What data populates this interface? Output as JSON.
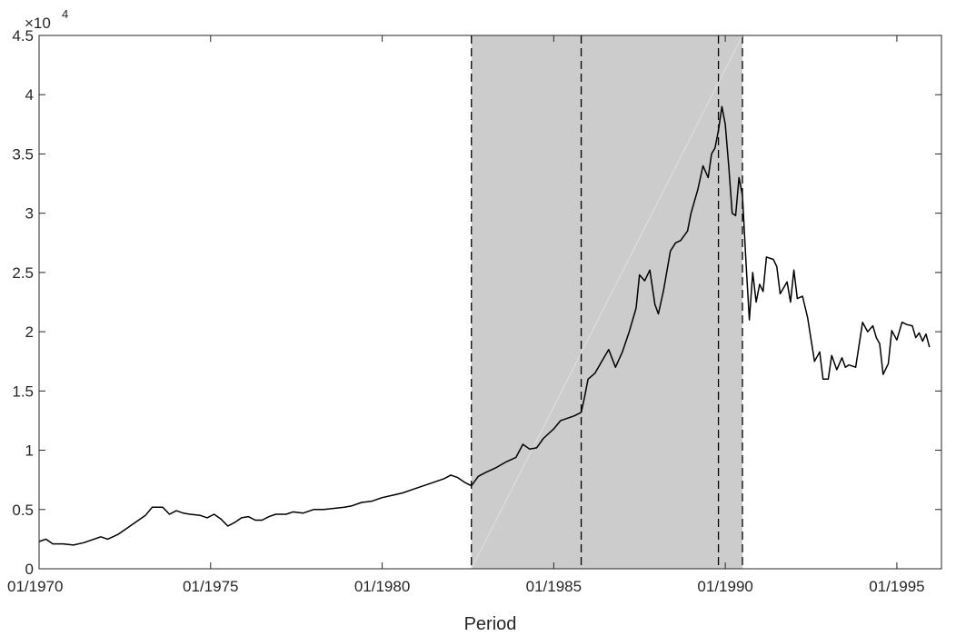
{
  "chart_data": {
    "type": "line",
    "title": "",
    "xlabel": "Period",
    "ylabel": "",
    "y_exponent_label": "×10",
    "y_exponent_power": "4",
    "xlim": [
      1970.0,
      1996.3
    ],
    "ylim": [
      0,
      45000
    ],
    "y_ticks": [
      0,
      5000,
      10000,
      15000,
      20000,
      25000,
      30000,
      35000,
      40000,
      45000
    ],
    "y_tick_labels": [
      "0",
      "0.5",
      "1",
      "1.5",
      "2",
      "2.5",
      "3",
      "3.5",
      "4",
      "4.5"
    ],
    "x_ticks": [
      1970,
      1975,
      1980,
      1985,
      1990,
      1995
    ],
    "x_tick_labels": [
      "01/1970",
      "01/1975",
      "01/1980",
      "01/1985",
      "01/1990",
      "01/1995"
    ],
    "grid": false,
    "shaded_region": [
      1982.6,
      1990.5
    ],
    "vertical_lines": [
      1982.6,
      1985.8,
      1989.8,
      1990.5
    ],
    "colors": {
      "line": "#000000",
      "shade": "#cccccc",
      "axis": "#262626"
    },
    "series": [
      {
        "points": [
          [
            1970.0,
            2300
          ],
          [
            1970.2,
            2500
          ],
          [
            1970.4,
            2100
          ],
          [
            1970.7,
            2100
          ],
          [
            1971.0,
            2000
          ],
          [
            1971.3,
            2200
          ],
          [
            1971.6,
            2500
          ],
          [
            1971.8,
            2700
          ],
          [
            1972.0,
            2500
          ],
          [
            1972.3,
            2900
          ],
          [
            1972.5,
            3300
          ],
          [
            1972.7,
            3700
          ],
          [
            1972.9,
            4100
          ],
          [
            1973.1,
            4500
          ],
          [
            1973.3,
            5200
          ],
          [
            1973.6,
            5200
          ],
          [
            1973.8,
            4600
          ],
          [
            1974.0,
            4900
          ],
          [
            1974.2,
            4700
          ],
          [
            1974.4,
            4600
          ],
          [
            1974.7,
            4500
          ],
          [
            1974.9,
            4300
          ],
          [
            1975.1,
            4600
          ],
          [
            1975.3,
            4200
          ],
          [
            1975.5,
            3600
          ],
          [
            1975.7,
            3900
          ],
          [
            1975.9,
            4300
          ],
          [
            1976.1,
            4400
          ],
          [
            1976.3,
            4100
          ],
          [
            1976.5,
            4100
          ],
          [
            1976.7,
            4400
          ],
          [
            1976.9,
            4600
          ],
          [
            1977.2,
            4600
          ],
          [
            1977.4,
            4800
          ],
          [
            1977.7,
            4700
          ],
          [
            1978.0,
            5000
          ],
          [
            1978.3,
            5000
          ],
          [
            1978.6,
            5100
          ],
          [
            1978.9,
            5200
          ],
          [
            1979.1,
            5300
          ],
          [
            1979.4,
            5600
          ],
          [
            1979.7,
            5700
          ],
          [
            1980.0,
            6000
          ],
          [
            1980.3,
            6200
          ],
          [
            1980.6,
            6400
          ],
          [
            1980.9,
            6700
          ],
          [
            1981.2,
            7000
          ],
          [
            1981.5,
            7300
          ],
          [
            1981.8,
            7600
          ],
          [
            1982.0,
            7900
          ],
          [
            1982.2,
            7700
          ],
          [
            1982.4,
            7300
          ],
          [
            1982.6,
            7000
          ],
          [
            1982.8,
            7800
          ],
          [
            1983.0,
            8100
          ],
          [
            1983.3,
            8500
          ],
          [
            1983.6,
            9000
          ],
          [
            1983.9,
            9400
          ],
          [
            1984.1,
            10500
          ],
          [
            1984.3,
            10100
          ],
          [
            1984.5,
            10200
          ],
          [
            1984.7,
            11000
          ],
          [
            1985.0,
            11800
          ],
          [
            1985.2,
            12500
          ],
          [
            1985.4,
            12700
          ],
          [
            1985.6,
            12900
          ],
          [
            1985.8,
            13200
          ],
          [
            1985.9,
            14500
          ],
          [
            1986.0,
            16000
          ],
          [
            1986.2,
            16500
          ],
          [
            1986.4,
            17500
          ],
          [
            1986.6,
            18500
          ],
          [
            1986.8,
            17000
          ],
          [
            1987.0,
            18300
          ],
          [
            1987.2,
            20000
          ],
          [
            1987.4,
            22000
          ],
          [
            1987.5,
            24800
          ],
          [
            1987.65,
            24300
          ],
          [
            1987.8,
            25200
          ],
          [
            1987.95,
            22300
          ],
          [
            1988.05,
            21500
          ],
          [
            1988.2,
            23500
          ],
          [
            1988.4,
            26800
          ],
          [
            1988.55,
            27500
          ],
          [
            1988.7,
            27700
          ],
          [
            1988.9,
            28500
          ],
          [
            1989.0,
            30000
          ],
          [
            1989.2,
            32000
          ],
          [
            1989.35,
            34000
          ],
          [
            1989.5,
            33000
          ],
          [
            1989.6,
            35000
          ],
          [
            1989.7,
            35500
          ],
          [
            1989.8,
            37000
          ],
          [
            1989.9,
            39000
          ],
          [
            1990.0,
            37500
          ],
          [
            1990.1,
            34000
          ],
          [
            1990.2,
            30000
          ],
          [
            1990.3,
            29800
          ],
          [
            1990.4,
            33000
          ],
          [
            1990.5,
            31500
          ],
          [
            1990.6,
            26000
          ],
          [
            1990.7,
            21000
          ],
          [
            1990.8,
            25000
          ],
          [
            1990.9,
            22500
          ],
          [
            1991.0,
            24000
          ],
          [
            1991.1,
            23400
          ],
          [
            1991.2,
            26300
          ],
          [
            1991.4,
            26100
          ],
          [
            1991.5,
            25500
          ],
          [
            1991.6,
            23200
          ],
          [
            1991.8,
            24200
          ],
          [
            1991.9,
            22500
          ],
          [
            1992.0,
            25200
          ],
          [
            1992.1,
            22800
          ],
          [
            1992.25,
            23000
          ],
          [
            1992.4,
            21200
          ],
          [
            1992.6,
            17500
          ],
          [
            1992.75,
            18300
          ],
          [
            1992.85,
            16000
          ],
          [
            1993.0,
            16000
          ],
          [
            1993.1,
            18000
          ],
          [
            1993.25,
            16800
          ],
          [
            1993.4,
            17800
          ],
          [
            1993.5,
            17000
          ],
          [
            1993.6,
            17200
          ],
          [
            1993.8,
            17000
          ],
          [
            1994.0,
            20800
          ],
          [
            1994.15,
            20000
          ],
          [
            1994.3,
            20500
          ],
          [
            1994.4,
            19500
          ],
          [
            1994.5,
            19000
          ],
          [
            1994.6,
            16400
          ],
          [
            1994.75,
            17300
          ],
          [
            1994.85,
            20100
          ],
          [
            1995.0,
            19300
          ],
          [
            1995.15,
            20800
          ],
          [
            1995.3,
            20600
          ],
          [
            1995.45,
            20500
          ],
          [
            1995.55,
            19500
          ],
          [
            1995.65,
            19900
          ],
          [
            1995.75,
            19200
          ],
          [
            1995.85,
            19800
          ],
          [
            1995.95,
            18700
          ]
        ]
      }
    ]
  }
}
